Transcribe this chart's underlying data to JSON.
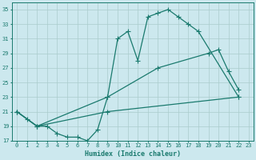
{
  "xlabel": "Humidex (Indice chaleur)",
  "bg_color": "#cce8ee",
  "grid_color": "#aacccc",
  "line_color": "#1a7a6e",
  "xlim": [
    -0.5,
    23.5
  ],
  "ylim": [
    17,
    36
  ],
  "yticks": [
    17,
    19,
    21,
    23,
    25,
    27,
    29,
    31,
    33,
    35
  ],
  "xticks": [
    0,
    1,
    2,
    3,
    4,
    5,
    6,
    7,
    8,
    9,
    10,
    11,
    12,
    13,
    14,
    15,
    16,
    17,
    18,
    19,
    20,
    21,
    22,
    23
  ],
  "curve1_x": [
    0,
    1,
    2,
    3,
    4,
    5,
    6,
    7,
    8,
    9,
    10,
    11,
    12,
    13,
    14,
    15,
    16,
    17,
    18,
    22
  ],
  "curve1_y": [
    21,
    20,
    19,
    19,
    18,
    17.5,
    17.5,
    17,
    18.5,
    23,
    31,
    32,
    28,
    34,
    34.5,
    35,
    34,
    33,
    32,
    23
  ],
  "curve2_x": [
    0,
    2,
    9,
    14,
    19,
    20,
    21,
    22
  ],
  "curve2_y": [
    21,
    19,
    23,
    27,
    29,
    29.5,
    26.5,
    24
  ],
  "curve3_x": [
    0,
    2,
    9,
    22
  ],
  "curve3_y": [
    21,
    19,
    21,
    23
  ]
}
